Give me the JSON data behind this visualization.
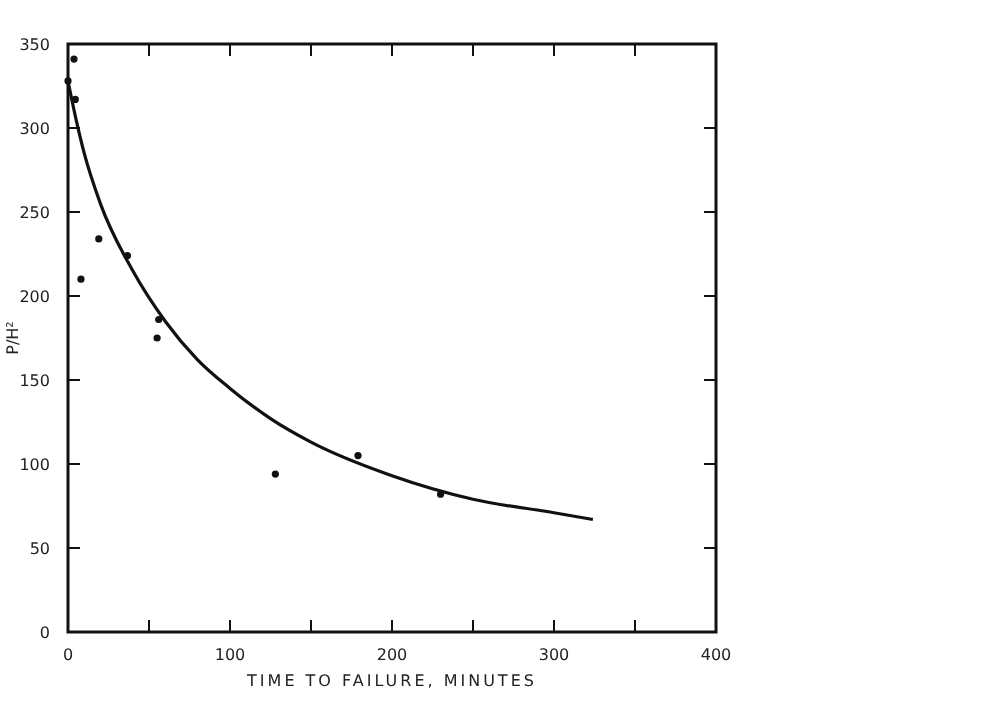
{
  "chart_data": {
    "type": "scatter",
    "xlabel": "TIME TO FAILURE, MINUTES",
    "ylabel": "P/H²",
    "xlim": [
      0,
      400
    ],
    "ylim": [
      0,
      350
    ],
    "xticks": [
      0,
      {
        "value": 50,
        "label": null
      },
      100,
      {
        "value": 150,
        "label": null
      },
      200,
      {
        "value": 250,
        "label": null
      },
      300,
      {
        "value": 350,
        "label": null
      },
      400
    ],
    "yticks": [
      0,
      50,
      100,
      150,
      200,
      250,
      300,
      350
    ],
    "grid": false,
    "marker": "circle",
    "series": [
      {
        "color": "#111111",
        "x": [
          0,
          3.7,
          4.5,
          8,
          19,
          36.7,
          55,
          56,
          128,
          179,
          230
        ],
        "values": [
          328,
          341,
          317,
          210,
          234,
          224,
          175,
          186,
          94,
          105,
          82
        ]
      },
      {
        "type": "line",
        "color": "#111111",
        "line_style": "solid",
        "marker": "none",
        "x": [
          0,
          5,
          10,
          20,
          40,
          60,
          80,
          100,
          125,
          150,
          200,
          250,
          300,
          324
        ],
        "values": [
          328,
          305,
          285,
          255,
          215,
          185,
          162,
          145,
          127,
          113,
          93,
          79,
          71,
          67
        ]
      }
    ]
  }
}
